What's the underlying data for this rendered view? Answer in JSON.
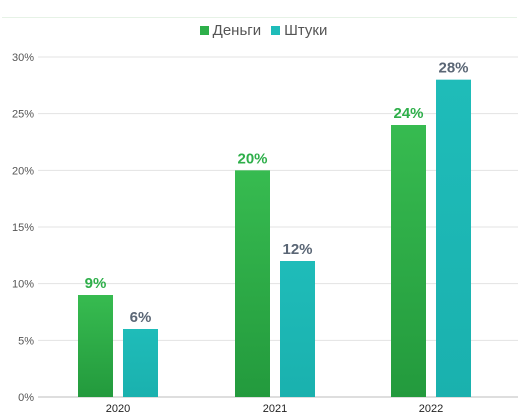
{
  "chart_data": {
    "type": "bar",
    "categories": [
      "2020",
      "2021",
      "2022"
    ],
    "series": [
      {
        "name": "Деньги",
        "values": [
          9,
          20,
          24
        ],
        "labels": [
          "9%",
          "20%",
          "24%"
        ],
        "color": "#2eaf4a",
        "label_color": "#2eaf4a"
      },
      {
        "name": "Штуки",
        "values": [
          6,
          12,
          28
        ],
        "labels": [
          "6%",
          "12%",
          "28%"
        ],
        "color": "#1fbcb9",
        "label_color": "#5a6675"
      }
    ],
    "ylim": [
      0,
      30
    ],
    "yticks": [
      0,
      5,
      10,
      15,
      20,
      25,
      30
    ],
    "ytick_labels": [
      "0%",
      "5%",
      "10%",
      "15%",
      "20%",
      "25%",
      "30%"
    ],
    "grid": true,
    "legend_position": "top-center",
    "title": "",
    "xlabel": "",
    "ylabel": ""
  }
}
